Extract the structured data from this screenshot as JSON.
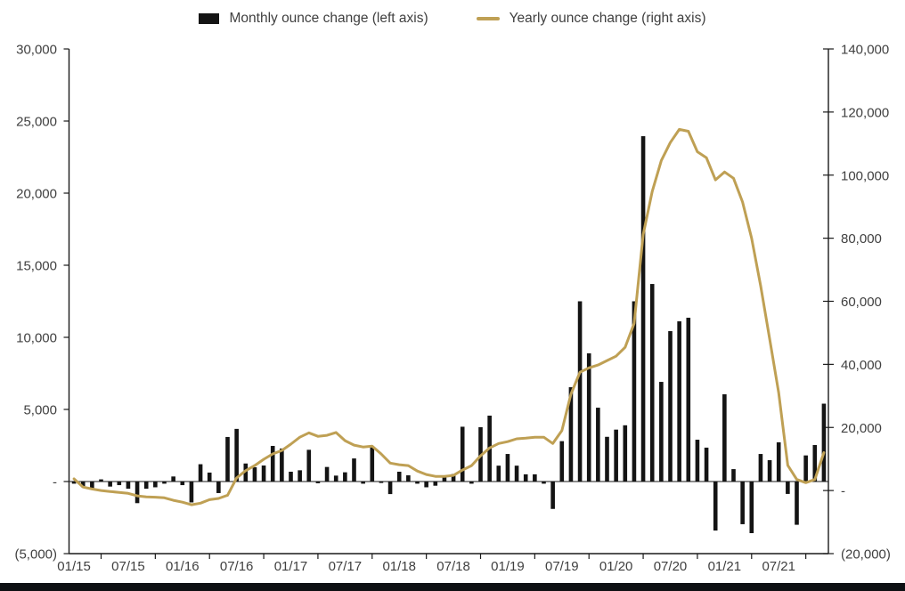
{
  "legend": {
    "monthly_label": "Monthly ounce change (left axis)",
    "yearly_label": "Yearly ounce change (right axis)"
  },
  "colors": {
    "bar": "#141414",
    "line": "#BFA054",
    "axis": "#1a1a1a",
    "zero_line": "#1a1a1a",
    "label": "#404040",
    "footer_bar": "#0e1013",
    "background": "#ffffff"
  },
  "chart_data": {
    "type": "bar+line",
    "title": "",
    "grid": "off",
    "legend_position": "top-center",
    "months": [
      "01/15",
      "02/15",
      "03/15",
      "04/15",
      "05/15",
      "06/15",
      "07/15",
      "08/15",
      "09/15",
      "10/15",
      "11/15",
      "12/15",
      "01/16",
      "02/16",
      "03/16",
      "04/16",
      "05/16",
      "06/16",
      "07/16",
      "08/16",
      "09/16",
      "10/16",
      "11/16",
      "12/16",
      "01/17",
      "02/17",
      "03/17",
      "04/17",
      "05/17",
      "06/17",
      "07/17",
      "08/17",
      "09/17",
      "10/17",
      "11/17",
      "12/17",
      "01/18",
      "02/18",
      "03/18",
      "04/18",
      "05/18",
      "06/18",
      "07/18",
      "08/18",
      "09/18",
      "10/18",
      "11/18",
      "12/18",
      "01/19",
      "02/19",
      "03/19",
      "04/19",
      "05/19",
      "06/19",
      "07/19",
      "08/19",
      "09/19",
      "10/19",
      "11/19",
      "12/19",
      "01/20",
      "02/20",
      "03/20",
      "04/20",
      "05/20",
      "06/20",
      "07/20",
      "08/20",
      "09/20",
      "10/20",
      "11/20",
      "12/20",
      "01/21",
      "02/21",
      "03/21",
      "04/21",
      "05/21",
      "06/21",
      "07/21",
      "08/21",
      "09/21",
      "10/21",
      "11/21",
      "12/21"
    ],
    "series": [
      {
        "name": "Monthly ounce change (left axis)",
        "type": "bar",
        "axis": "left",
        "values": [
          -150,
          -400,
          -500,
          150,
          -350,
          -250,
          -500,
          -1500,
          -500,
          -400,
          -150,
          350,
          -250,
          -1450,
          1200,
          620,
          -800,
          3090,
          3650,
          1250,
          990,
          1110,
          2470,
          2290,
          680,
          780,
          2200,
          -120,
          1010,
          410,
          640,
          1600,
          -150,
          2400,
          -100,
          -870,
          680,
          430,
          -150,
          -400,
          -290,
          430,
          520,
          3800,
          -150,
          3770,
          4570,
          1100,
          1910,
          1100,
          500,
          500,
          -150,
          -1900,
          2800,
          6540,
          12500,
          8890,
          5120,
          3100,
          3600,
          3900,
          12500,
          23950,
          13700,
          6910,
          10430,
          11110,
          11360,
          2900,
          2350,
          -3400,
          6050,
          860,
          -2960,
          -3580,
          1910,
          1480,
          2720,
          -860,
          -3000,
          1810,
          2530,
          5400
        ]
      },
      {
        "name": "Yearly ounce change (right axis)",
        "type": "line",
        "axis": "right",
        "values": [
          3700,
          1100,
          500,
          0,
          -300,
          -600,
          -900,
          -1700,
          -2000,
          -2100,
          -2300,
          -3100,
          -3700,
          -4500,
          -4000,
          -2900,
          -2500,
          -1500,
          4000,
          6300,
          7900,
          9900,
          11600,
          12700,
          14700,
          16900,
          18300,
          17200,
          17500,
          18400,
          15800,
          14400,
          13800,
          14100,
          11600,
          8700,
          8200,
          7900,
          6200,
          5100,
          4500,
          4500,
          4800,
          6500,
          7900,
          11000,
          13500,
          14900,
          15500,
          16400,
          16600,
          16900,
          16900,
          14900,
          19000,
          30500,
          37500,
          38900,
          39800,
          41200,
          42600,
          45400,
          53000,
          81200,
          94800,
          104600,
          110300,
          114500,
          113900,
          107400,
          105500,
          98500,
          101000,
          99000,
          91500,
          80000,
          65000,
          48000,
          31000,
          8000,
          3500,
          2500,
          3500,
          12000
        ]
      }
    ],
    "left_axis": {
      "min": -5000,
      "max": 30000,
      "step": 5000,
      "tick_values": [
        30000,
        25000,
        20000,
        15000,
        10000,
        5000,
        0,
        -5000
      ],
      "tick_labels": [
        "30,000",
        "25,000",
        "20,000",
        "15,000",
        "10,000",
        "5,000",
        "-",
        "(5,000)"
      ]
    },
    "right_axis": {
      "min": -20000,
      "max": 140000,
      "step": 20000,
      "tick_values": [
        140000,
        120000,
        100000,
        80000,
        60000,
        40000,
        20000,
        0,
        -20000
      ],
      "tick_labels": [
        "140,000",
        "120,000",
        "100,000",
        "80,000",
        "60,000",
        "40,000",
        "20,000",
        "-",
        "(20,000)"
      ]
    },
    "x_tick_labels": [
      "01/15",
      "07/15",
      "01/16",
      "07/16",
      "01/17",
      "07/17",
      "01/18",
      "07/18",
      "01/19",
      "07/19",
      "01/20",
      "07/20",
      "01/21",
      "07/21"
    ]
  }
}
